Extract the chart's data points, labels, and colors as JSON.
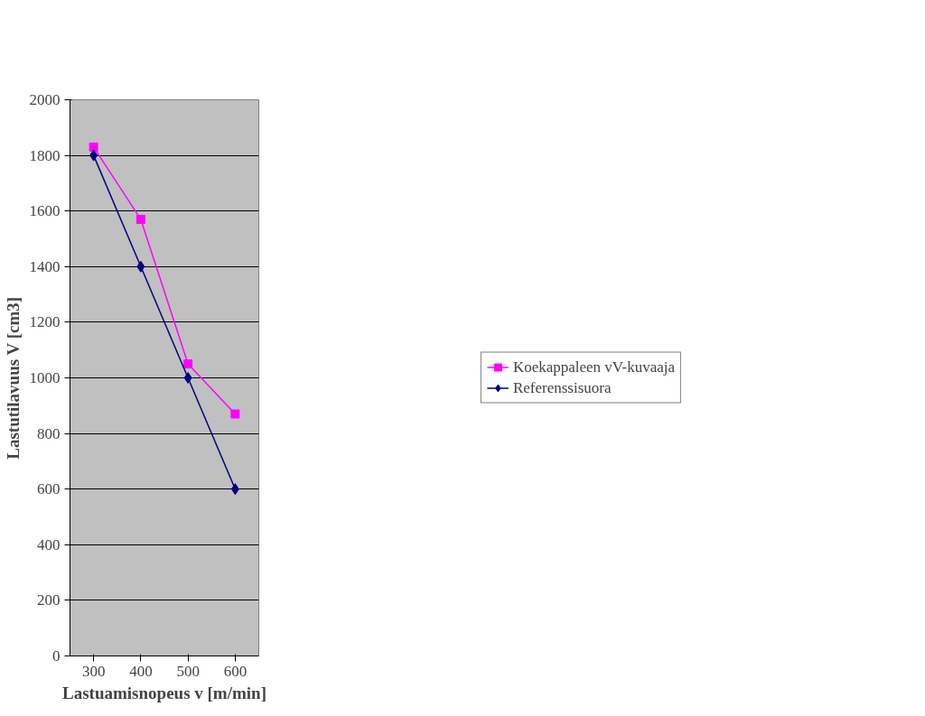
{
  "chart_data": {
    "type": "line",
    "xlabel": "Lastuamisnopeus v [m/min]",
    "ylabel": "Lastutilavuus V [cm3]",
    "categories": [
      "300",
      "400",
      "500",
      "600"
    ],
    "series": [
      {
        "name": "Koekappaleen vV-kuvaaja",
        "color": "#ff00ff",
        "marker": "square",
        "values": [
          1830,
          1570,
          1050,
          870
        ]
      },
      {
        "name": "Referenssisuora",
        "color": "#000080",
        "marker": "diamond",
        "values": [
          1800,
          1400,
          1000,
          600
        ]
      }
    ],
    "ylim": [
      0,
      2000
    ],
    "yticks": [
      0,
      200,
      400,
      600,
      800,
      1000,
      1200,
      1400,
      1600,
      1800,
      2000
    ],
    "grid": "y",
    "legend": "right",
    "line_style": "solid"
  }
}
